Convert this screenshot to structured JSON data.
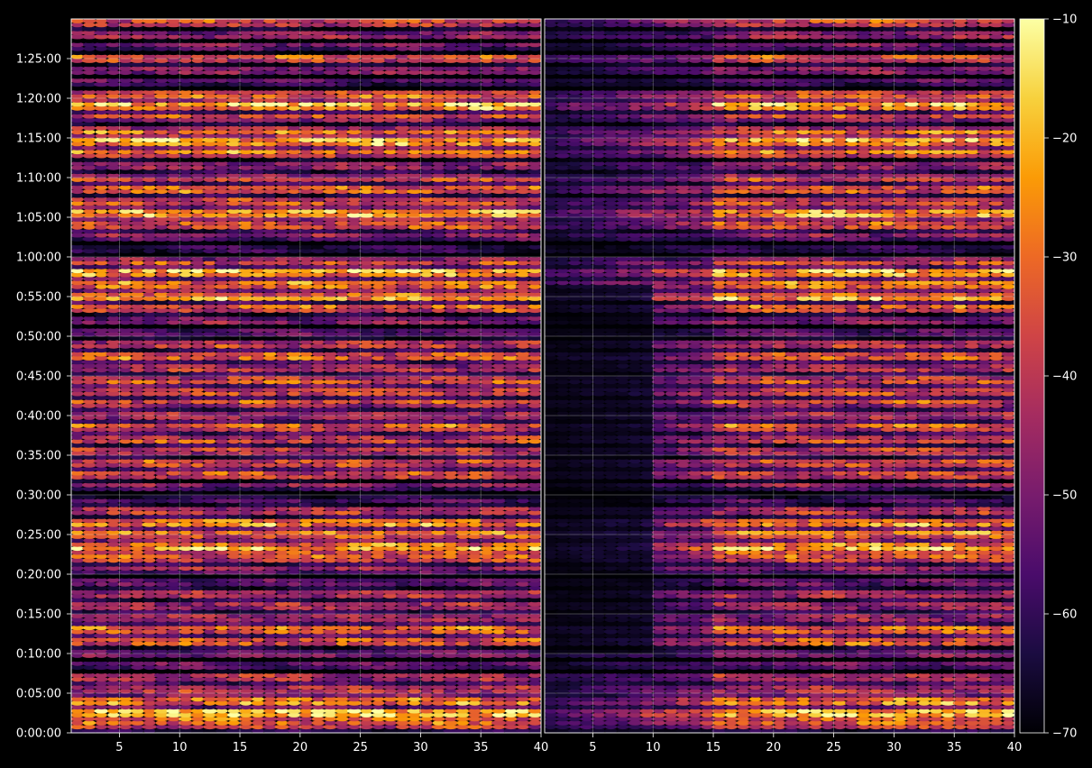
{
  "chart_data": {
    "type": "heatmap",
    "style": {
      "background": "#000000",
      "foreground": "#ffffff",
      "colormap": "inferno",
      "colormap_stops": [
        "#000004",
        "#1b0c41",
        "#4a0c6b",
        "#781c6d",
        "#a52c60",
        "#cf4446",
        "#ed6925",
        "#fb9b06",
        "#f7d13d",
        "#fcffa4"
      ],
      "grid": true,
      "grid_color": "#ffffff"
    },
    "time_axis": {
      "range_seconds": [
        0,
        5400
      ],
      "tick_labels": [
        "0:00:00",
        "0:05:00",
        "0:10:00",
        "0:15:00",
        "0:20:00",
        "0:25:00",
        "0:30:00",
        "0:35:00",
        "0:40:00",
        "0:45:00",
        "0:50:00",
        "0:55:00",
        "1:00:00",
        "1:05:00",
        "1:10:00",
        "1:15:00",
        "1:20:00",
        "1:25:00"
      ]
    },
    "panels": [
      {
        "id": "left",
        "xlim": [
          1,
          40
        ],
        "xticks": [
          5,
          10,
          15,
          20,
          25,
          30,
          35,
          40
        ],
        "quiet_band": false
      },
      {
        "id": "right",
        "xlim": [
          1,
          40
        ],
        "xticks": [
          5,
          10,
          15,
          20,
          25,
          30,
          35,
          40
        ],
        "quiet_band": true,
        "quiet_band_x": [
          1,
          15
        ]
      }
    ],
    "colorbar": {
      "range": [
        -70,
        -10
      ],
      "tick_labels": [
        "−10",
        "−20",
        "−30",
        "−40",
        "−50",
        "−60",
        "−70"
      ]
    },
    "row_profile_description_values": {
      "rows_per_minute": 2,
      "level_min": -70,
      "level_max": -10
    }
  }
}
